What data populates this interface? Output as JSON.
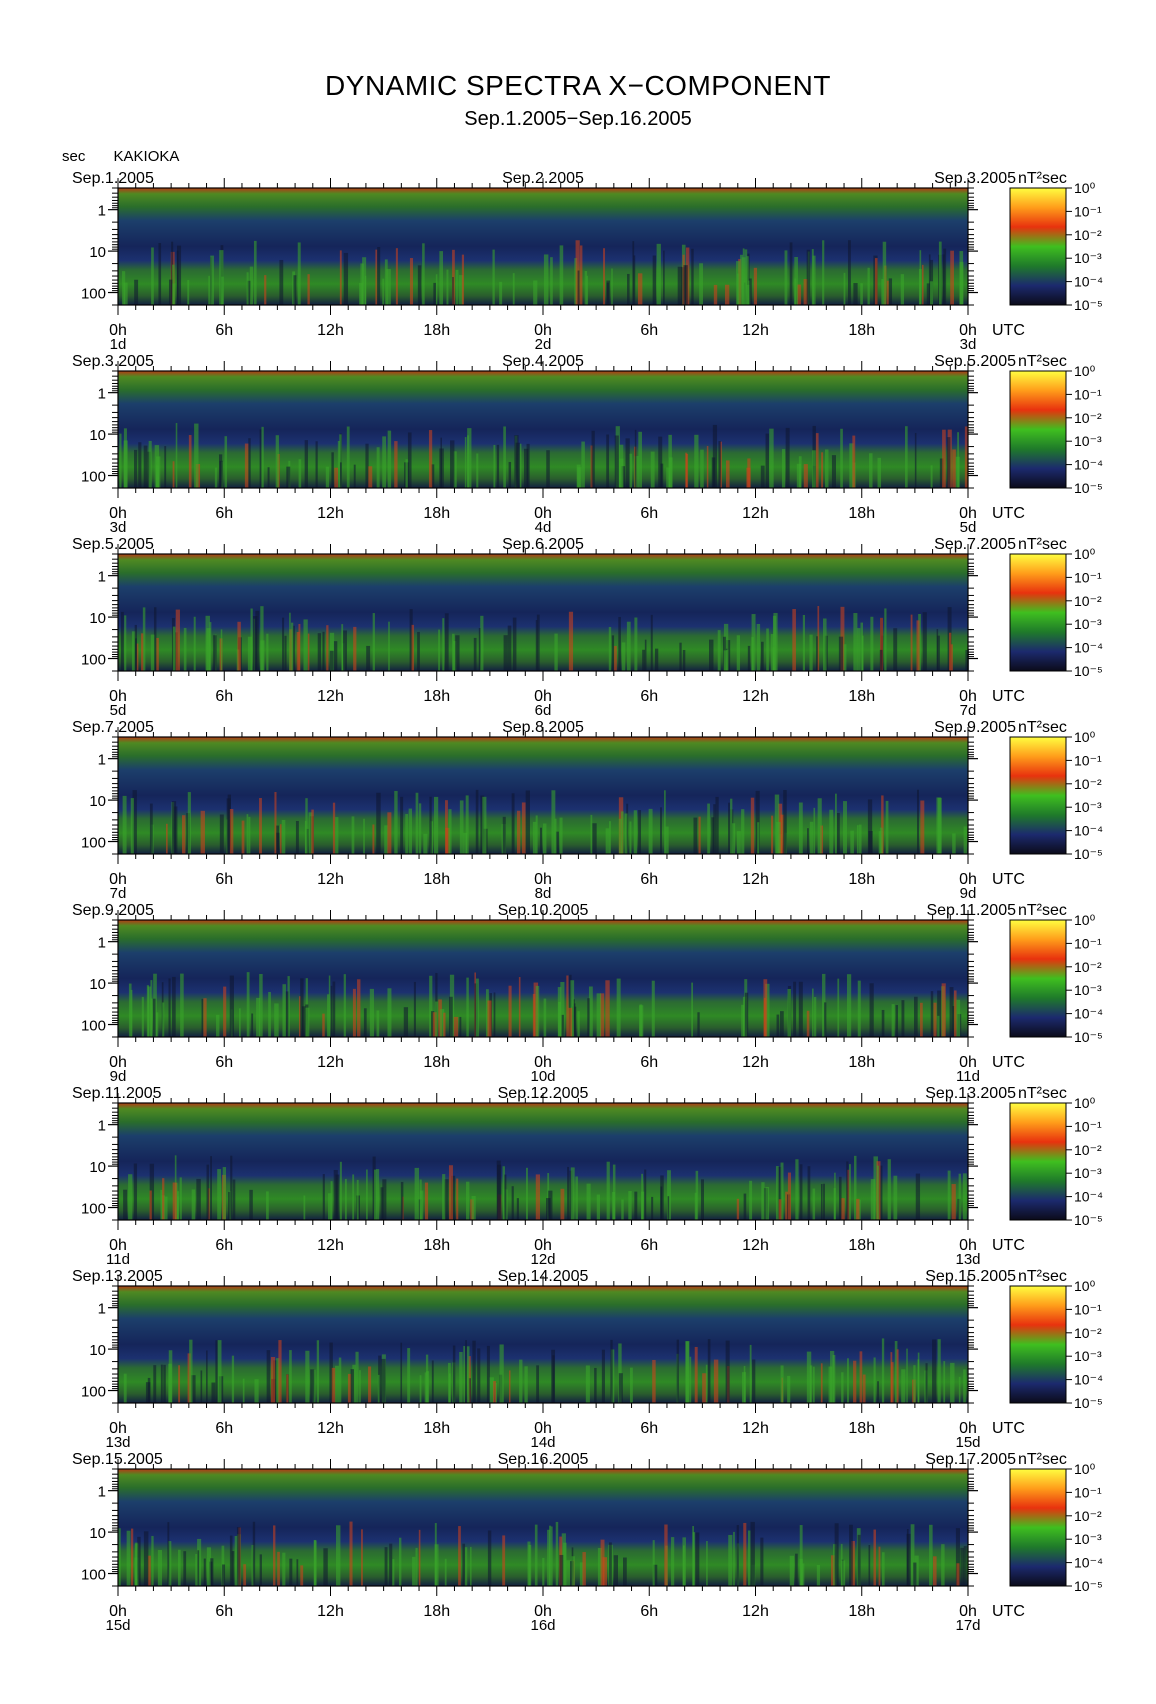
{
  "header": {
    "title": "DYNAMIC SPECTRA X−COMPONENT",
    "subtitle": "Sep.1.2005−Sep.16.2005",
    "y_unit": "sec",
    "station": "KAKIOKA"
  },
  "chart_data": {
    "type": "heatmap",
    "x_unit": "UTC",
    "colorbar_unit": "nT²sec",
    "colorbar_range": [
      1e-05,
      1
    ],
    "colorbar_ticks": [
      "10⁰",
      "10⁻¹",
      "10⁻²",
      "10⁻³",
      "10⁻⁴",
      "10⁻⁵"
    ],
    "y_ticks": [
      "1",
      "10",
      "100"
    ],
    "y_scale": "log",
    "ylim_sec": [
      0.3,
      200
    ],
    "x_tick_labels": [
      "0h",
      "6h",
      "12h",
      "18h",
      "0h",
      "6h",
      "12h",
      "18h",
      "0h"
    ],
    "colormap": [
      "#0b0b1a",
      "#1c2a6e",
      "#1f7a2a",
      "#3fbf1f",
      "#e8320e",
      "#ff9d1a",
      "#ffff40"
    ],
    "panels": [
      {
        "date_left": "Sep.1.2005",
        "date_mid": "Sep.2.2005",
        "date_right": "Sep.3.2005",
        "day_left": "1d",
        "day_mid": "2d",
        "day_right": "3d"
      },
      {
        "date_left": "Sep.3.2005",
        "date_mid": "Sep.4.2005",
        "date_right": "Sep.5.2005",
        "day_left": "3d",
        "day_mid": "4d",
        "day_right": "5d"
      },
      {
        "date_left": "Sep.5.2005",
        "date_mid": "Sep.6.2005",
        "date_right": "Sep.7.2005",
        "day_left": "5d",
        "day_mid": "6d",
        "day_right": "7d"
      },
      {
        "date_left": "Sep.7.2005",
        "date_mid": "Sep.8.2005",
        "date_right": "Sep.9.2005",
        "day_left": "7d",
        "day_mid": "8d",
        "day_right": "9d"
      },
      {
        "date_left": "Sep.9.2005",
        "date_mid": "Sep.10.2005",
        "date_right": "Sep.11.2005",
        "day_left": "9d",
        "day_mid": "10d",
        "day_right": "11d"
      },
      {
        "date_left": "Sep.11.2005",
        "date_mid": "Sep.12.2005",
        "date_right": "Sep.13.2005",
        "day_left": "11d",
        "day_mid": "12d",
        "day_right": "13d"
      },
      {
        "date_left": "Sep.13.2005",
        "date_mid": "Sep.14.2005",
        "date_right": "Sep.15.2005",
        "day_left": "13d",
        "day_mid": "14d",
        "day_right": "15d"
      },
      {
        "date_left": "Sep.15.2005",
        "date_mid": "Sep.16.2005",
        "date_right": "Sep.17.2005",
        "day_left": "15d",
        "day_mid": "16d",
        "day_right": "17d"
      }
    ]
  }
}
